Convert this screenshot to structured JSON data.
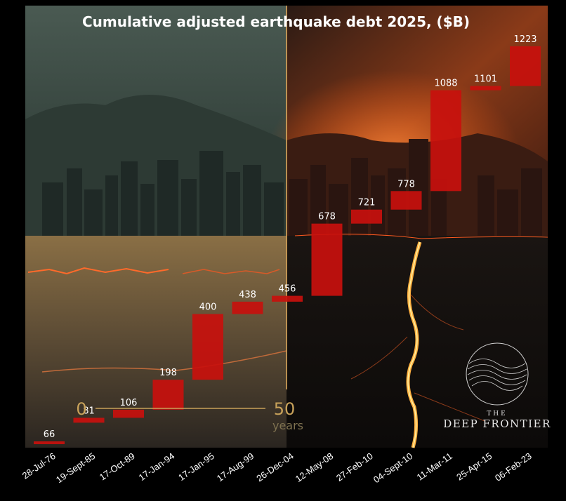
{
  "chart_data": {
    "type": "bar",
    "title": "Cumulative adjusted earthquake debt 2025, ($B)",
    "categories": [
      "28-Jul-76",
      "19-Sept-85",
      "17-Oct-89",
      "17-Jan-94",
      "17-Jan-95",
      "17-Aug-99",
      "26-Dec-04",
      "12-May-08",
      "27-Feb-10",
      "04-Sept-10",
      "11-Mar-11",
      "25-Apr-15",
      "06-Feb-23"
    ],
    "values": [
      66,
      81,
      106,
      198,
      400,
      438,
      456,
      678,
      721,
      778,
      1088,
      1101,
      1223
    ],
    "data_labels": [
      "66",
      "81",
      "106",
      "198",
      "400",
      "438",
      "456",
      "678",
      "721",
      "778",
      "1088",
      "1101",
      "1223"
    ],
    "ylim": [
      0,
      1223
    ],
    "bar_color": "#c8100d",
    "grid": false
  },
  "scale_marker": {
    "start": "0",
    "end": "50",
    "unit": "years"
  },
  "brand": {
    "line1": "THE",
    "line2": "DEEP FRONTIER"
  }
}
